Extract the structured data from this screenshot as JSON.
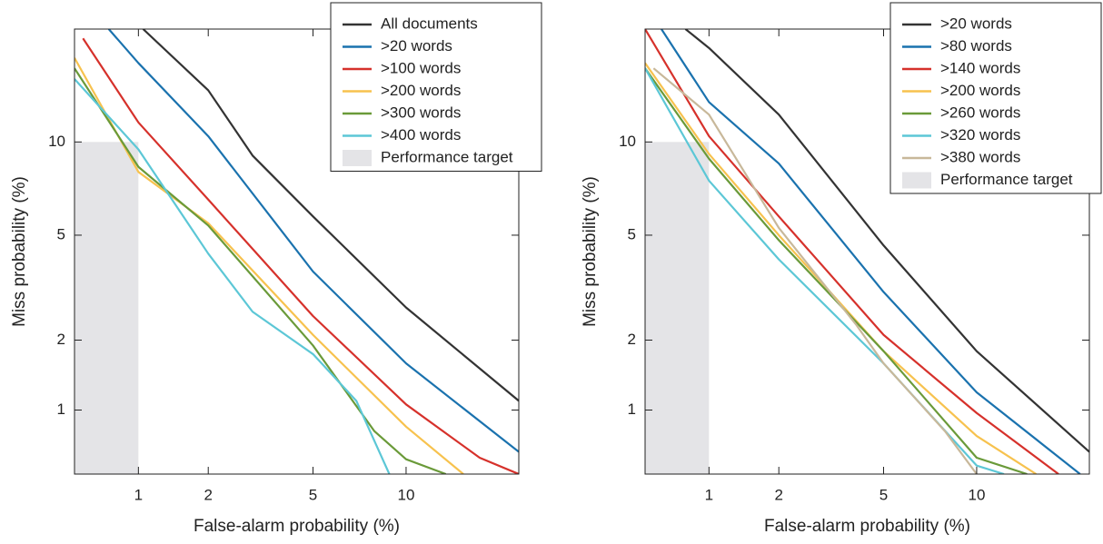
{
  "chart_data": [
    {
      "type": "line",
      "scale": "normal-deviate",
      "xlabel": "False-alarm probability (%)",
      "ylabel": "Miss probability (%)",
      "xlim": [
        0.5,
        20
      ],
      "ylim": [
        0.5,
        20
      ],
      "xticks": [
        1,
        2,
        5,
        10
      ],
      "yticks": [
        1,
        2,
        5,
        10
      ],
      "legend": "upper right",
      "target": {
        "name": "Performance target",
        "x": 1,
        "y": 10,
        "color": "#e4e4e7"
      },
      "series": [
        {
          "name": "All documents",
          "color": "#333333",
          "x": [
            1.05,
            2,
            3,
            5,
            10,
            20
          ],
          "values": [
            20,
            14,
            9.1,
            5.8,
            2.7,
            1.1
          ]
        },
        {
          "name": ">20 words",
          "color": "#1a72ae",
          "x": [
            0.73,
            1,
            2,
            5,
            10,
            20
          ],
          "values": [
            20,
            16.5,
            10.4,
            3.7,
            1.6,
            0.64
          ]
        },
        {
          "name": ">100 words",
          "color": "#d6312b",
          "x": [
            0.55,
            1,
            2,
            5,
            10,
            16,
            20
          ],
          "values": [
            19,
            11.4,
            6.6,
            2.5,
            1.06,
            0.6,
            0.5
          ]
        },
        {
          "name": ">200 words",
          "color": "#f7c24e",
          "x": [
            0.5,
            1,
            2,
            5,
            10,
            14.5
          ],
          "values": [
            17,
            8.1,
            5.5,
            2.1,
            0.84,
            0.5
          ]
        },
        {
          "name": ">300 words",
          "color": "#6a9a39",
          "x": [
            0.5,
            1,
            2,
            5,
            8,
            10,
            13
          ],
          "values": [
            16,
            8.4,
            5.4,
            1.9,
            0.8,
            0.59,
            0.5
          ]
        },
        {
          "name": ">400 words",
          "color": "#5cc7d6",
          "x": [
            0.5,
            1,
            2,
            3,
            5,
            7,
            8.9
          ],
          "values": [
            15,
            9.5,
            4.3,
            2.6,
            1.75,
            1.1,
            0.5
          ]
        }
      ]
    },
    {
      "type": "line",
      "scale": "normal-deviate",
      "xlabel": "False-alarm probability (%)",
      "ylabel": "Miss probability (%)",
      "xlim": [
        0.5,
        20
      ],
      "ylim": [
        0.5,
        20
      ],
      "xticks": [
        1,
        2,
        5,
        10
      ],
      "yticks": [
        1,
        2,
        5,
        10
      ],
      "legend": "upper right",
      "target": {
        "name": "Performance target",
        "x": 1,
        "y": 10,
        "color": "#e4e4e7"
      },
      "series": [
        {
          "name": ">20 words",
          "color": "#333333",
          "x": [
            0.78,
            1,
            2,
            5,
            10,
            20
          ],
          "values": [
            20,
            18,
            12,
            4.6,
            1.8,
            0.64
          ]
        },
        {
          "name": ">80 words",
          "color": "#1a72ae",
          "x": [
            0.6,
            1,
            2,
            5,
            10,
            19
          ],
          "values": [
            20,
            13,
            8.6,
            3.1,
            1.2,
            0.5
          ]
        },
        {
          "name": ">140 words",
          "color": "#d6312b",
          "x": [
            0.5,
            1,
            2,
            5,
            10,
            16.8
          ],
          "values": [
            20,
            10.4,
            5.8,
            2.1,
            0.97,
            0.5
          ]
        },
        {
          "name": ">200 words",
          "color": "#f7c24e",
          "x": [
            0.5,
            1,
            2,
            5,
            10,
            14.7
          ],
          "values": [
            16.5,
            9.2,
            5,
            1.8,
            0.76,
            0.5
          ]
        },
        {
          "name": ">260 words",
          "color": "#6a9a39",
          "x": [
            0.5,
            1,
            2,
            5,
            10,
            13.9
          ],
          "values": [
            16,
            8.9,
            4.8,
            1.8,
            0.6,
            0.5
          ]
        },
        {
          "name": ">320 words",
          "color": "#5cc7d6",
          "x": [
            0.5,
            1,
            2,
            5,
            10,
            12
          ],
          "values": [
            16,
            7.6,
            4.1,
            1.6,
            0.55,
            0.5
          ]
        },
        {
          "name": ">380 words",
          "color": "#c8b89a",
          "x": [
            0.55,
            1,
            2,
            4,
            5,
            8,
            10
          ],
          "values": [
            16,
            12,
            5.3,
            2.3,
            1.6,
            0.8,
            0.5
          ]
        }
      ]
    }
  ]
}
